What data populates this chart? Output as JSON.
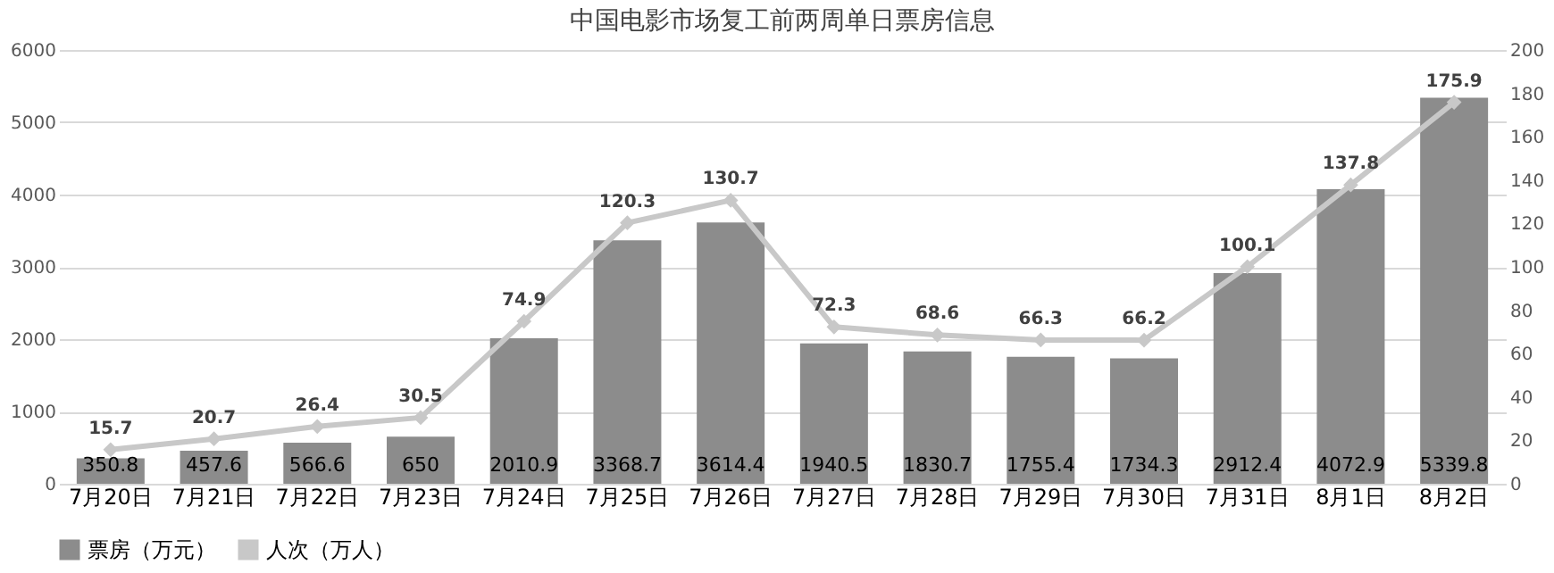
{
  "chart_data": {
    "type": "bar",
    "title": "中国电影市场复工前两周单日票房信息",
    "categories": [
      "7月20日",
      "7月21日",
      "7月22日",
      "7月23日",
      "7月24日",
      "7月25日",
      "7月26日",
      "7月27日",
      "7月28日",
      "7月29日",
      "7月30日",
      "7月31日",
      "8月1日",
      "8月2日"
    ],
    "series": [
      {
        "name": "票房（万元）",
        "color": "#8c8c8c",
        "values": [
          350.8,
          457.6,
          566.6,
          650,
          2010.9,
          3368.7,
          3614.4,
          1940.5,
          1830.7,
          1755.4,
          1734.3,
          2912.4,
          4072.9,
          5339.8
        ]
      },
      {
        "name": "人次（万人）",
        "type": "line",
        "axis": "y2",
        "color": "#c8c8c8",
        "values": [
          15.7,
          20.7,
          26.4,
          30.5,
          74.9,
          120.3,
          130.7,
          72.3,
          68.6,
          66.3,
          66.2,
          100.1,
          137.8,
          175.9
        ]
      }
    ],
    "ylim": [
      0,
      6000
    ],
    "yticks": [
      0,
      1000,
      2000,
      3000,
      4000,
      5000,
      6000
    ],
    "y2lim": [
      0,
      200
    ],
    "y2ticks": [
      0,
      20,
      40,
      60,
      80,
      100,
      120,
      140,
      160,
      180,
      200
    ],
    "data_labels": true,
    "grid": "y",
    "legend": "bottom",
    "marker": "diamond",
    "line_style": "solid"
  }
}
